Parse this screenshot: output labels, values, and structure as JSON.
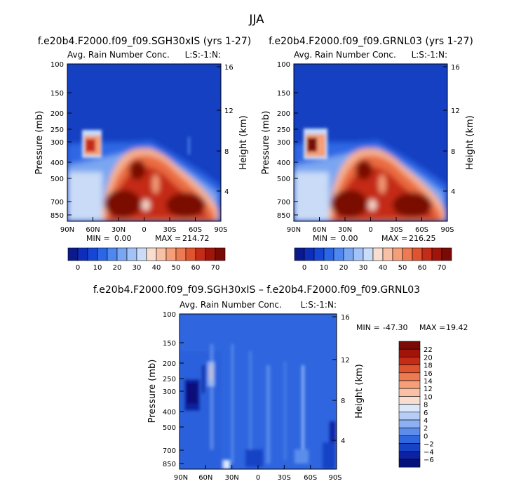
{
  "figure": {
    "title": "JJA",
    "diff_title": "f.e20b4.F2000.f09_f09.SGH30xIS – f.e20b4.F2000.f09_f09.GRNL03"
  },
  "chart_data": [
    {
      "type": "heatmap",
      "title": "f.e20b4.F2000.f09_f09.SGH30xIS (yrs 1-27)",
      "subtitle": "Avg. Rain Number Conc.",
      "level_label": "L:S:-1:N:",
      "xlabel": "",
      "ylabel": "Pressure (mb)",
      "y2label": "Height (km)",
      "xticks": [
        "90N",
        "60N",
        "30N",
        "0",
        "30S",
        "60S",
        "90S"
      ],
      "yticks": [
        "100",
        "150",
        "200",
        "250",
        "300",
        "400",
        "500",
        "700",
        "850"
      ],
      "y2ticks": [
        "16",
        "12",
        "8",
        "4"
      ],
      "stats": {
        "min_label": "MIN =",
        "min": "0.00",
        "max_label": "MAX =",
        "max": "214.72"
      },
      "colorbar": {
        "labels": [
          "0",
          "10",
          "20",
          "30",
          "40",
          "50",
          "60",
          "70"
        ],
        "colors": [
          "#0a1a8c",
          "#0f2dbb",
          "#1646d6",
          "#2a66e6",
          "#4e87ef",
          "#78a6f3",
          "#a2c3f7",
          "#cbdcf8",
          "#f9ded0",
          "#f8c0a4",
          "#f59e78",
          "#ee7a52",
          "#e0532f",
          "#c42c17",
          "#a0140a",
          "#7a0a05"
        ]
      }
    },
    {
      "type": "heatmap",
      "title": "f.e20b4.F2000.f09_f09.GRNL03 (yrs 1-27)",
      "subtitle": "Avg. Rain Number Conc.",
      "level_label": "L:S:-1:N:",
      "xlabel": "",
      "ylabel": "Pressure (mb)",
      "y2label": "Height (km)",
      "xticks": [
        "90N",
        "60N",
        "30N",
        "0",
        "30S",
        "60S",
        "90S"
      ],
      "yticks": [
        "100",
        "150",
        "200",
        "250",
        "300",
        "400",
        "500",
        "700",
        "850"
      ],
      "y2ticks": [
        "16",
        "12",
        "8",
        "4"
      ],
      "stats": {
        "min_label": "MIN =",
        "min": "0.00",
        "max_label": "MAX =",
        "max": "216.25"
      },
      "colorbar": {
        "labels": [
          "0",
          "10",
          "20",
          "30",
          "40",
          "50",
          "60",
          "70"
        ],
        "colors": [
          "#0a1a8c",
          "#0f2dbb",
          "#1646d6",
          "#2a66e6",
          "#4e87ef",
          "#78a6f3",
          "#a2c3f7",
          "#cbdcf8",
          "#f9ded0",
          "#f8c0a4",
          "#f59e78",
          "#ee7a52",
          "#e0532f",
          "#c42c17",
          "#a0140a",
          "#7a0a05"
        ]
      }
    },
    {
      "type": "heatmap",
      "title": "f.e20b4.F2000.f09_f09.SGH30xIS – f.e20b4.F2000.f09_f09.GRNL03",
      "subtitle": "Avg. Rain Number Conc.",
      "level_label": "L:S:-1:N:",
      "xlabel": "",
      "ylabel": "Pressure (mb)",
      "y2label": "Height (km)",
      "xticks": [
        "90N",
        "60N",
        "30N",
        "0",
        "30S",
        "60S",
        "90S"
      ],
      "yticks": [
        "100",
        "150",
        "200",
        "250",
        "300",
        "400",
        "500",
        "700",
        "850"
      ],
      "y2ticks": [
        "16",
        "12",
        "8",
        "4"
      ],
      "stats": {
        "min_label": "MIN =",
        "min": "-47.30",
        "max_label": "MAX =",
        "max": "19.42"
      },
      "colorbar": {
        "labels": [
          "22",
          "20",
          "18",
          "16",
          "14",
          "12",
          "10",
          "8",
          "6",
          "4",
          "2",
          "0",
          "−2",
          "−4",
          "−6"
        ],
        "colors": [
          "#7a0a05",
          "#a0140a",
          "#c42c17",
          "#e0532f",
          "#ee7a52",
          "#f59e78",
          "#f8c0a4",
          "#f9ded0",
          "#dce8f9",
          "#b6cdf6",
          "#8cb0f1",
          "#5c8dea",
          "#2f67df",
          "#1743c6",
          "#0c22a2",
          "#07117a"
        ]
      }
    }
  ]
}
